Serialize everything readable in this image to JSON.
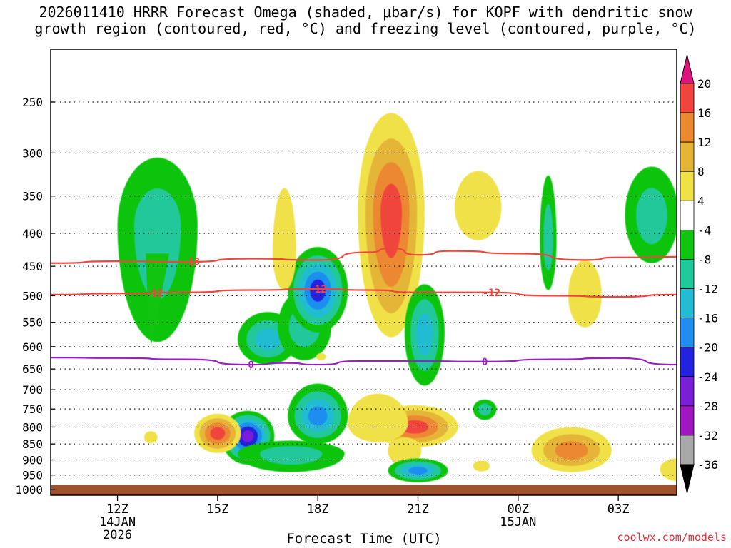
{
  "title": {
    "line1": "2026011410 HRRR Forecast Omega (shaded, μbar/s) for KOPF with dendritic snow",
    "line2": "growth region (contoured, red, °C) and freezing level (contoured, purple, °C)"
  },
  "credit": "coolwx.com/models",
  "chart_data": {
    "type": "heatmap",
    "xlabel": "Forecast Time (UTC)",
    "x_range_hours": [
      10.0,
      28.75
    ],
    "x_ticks": [
      {
        "hour": 12,
        "label": "12Z",
        "sub1": "14JAN",
        "sub2": "2026"
      },
      {
        "hour": 15,
        "label": "15Z",
        "sub1": "",
        "sub2": ""
      },
      {
        "hour": 18,
        "label": "18Z",
        "sub1": "",
        "sub2": ""
      },
      {
        "hour": 21,
        "label": "21Z",
        "sub1": "",
        "sub2": ""
      },
      {
        "hour": 24,
        "label": "00Z",
        "sub1": "15JAN",
        "sub2": ""
      },
      {
        "hour": 27,
        "label": "03Z",
        "sub1": "",
        "sub2": ""
      }
    ],
    "y_axis": "pressure (mb)",
    "y_ticks": [
      "250",
      "300",
      "350",
      "400",
      "450",
      "500",
      "550",
      "600",
      "650",
      "700",
      "750",
      "800",
      "850",
      "900",
      "950",
      "1000"
    ],
    "colorbar": {
      "labels": [
        "20",
        "16",
        "12",
        "8",
        "4",
        "-4",
        "-8",
        "-12",
        "-16",
        "-20",
        "-24",
        "-28",
        "-32",
        "-36"
      ],
      "top_color": "#e0137f",
      "bottom_color": "#000000",
      "bands": [
        {
          "min": 16,
          "max": 20,
          "color": "#f0443c"
        },
        {
          "min": 12,
          "max": 16,
          "color": "#ec8830"
        },
        {
          "min": 8,
          "max": 12,
          "color": "#e5b537"
        },
        {
          "min": 4,
          "max": 8,
          "color": "#efe146"
        },
        {
          "min": -4,
          "max": 4,
          "color": "#ffffff"
        },
        {
          "min": -8,
          "max": -4,
          "color": "#10c410"
        },
        {
          "min": -12,
          "max": -8,
          "color": "#20c89a"
        },
        {
          "min": -16,
          "max": -12,
          "color": "#23bcd2"
        },
        {
          "min": -20,
          "max": -16,
          "color": "#1f8ef0"
        },
        {
          "min": -24,
          "max": -20,
          "color": "#2222e0"
        },
        {
          "min": -28,
          "max": -24,
          "color": "#7a1fd8"
        },
        {
          "min": -32,
          "max": -28,
          "color": "#a016c0"
        },
        {
          "min": -36,
          "max": -32,
          "color": "#a8a8a8"
        }
      ]
    },
    "series": [
      {
        "name": "-18 °C isotherm",
        "label": "-18",
        "color": "#f0443c",
        "points": [
          [
            10,
            445
          ],
          [
            12,
            442
          ],
          [
            14,
            443
          ],
          [
            16,
            438
          ],
          [
            18,
            440
          ],
          [
            19.5,
            428
          ],
          [
            20.2,
            422
          ],
          [
            21,
            432
          ],
          [
            22,
            426
          ],
          [
            24,
            430
          ],
          [
            26,
            440
          ],
          [
            27,
            436
          ],
          [
            28.75,
            435
          ]
        ]
      },
      {
        "name": "-12 °C isotherm",
        "label": "-12",
        "color": "#f0443c",
        "points": [
          [
            10,
            498
          ],
          [
            12,
            496
          ],
          [
            14,
            494
          ],
          [
            16,
            490
          ],
          [
            18,
            488
          ],
          [
            19.5,
            490
          ],
          [
            21,
            494
          ],
          [
            23,
            494
          ],
          [
            25,
            500
          ],
          [
            27,
            502
          ],
          [
            28.75,
            498
          ]
        ]
      },
      {
        "name": "0 °C freezing level",
        "label": "0",
        "color": "#9a1dc8",
        "points": [
          [
            10,
            624
          ],
          [
            12,
            625
          ],
          [
            14,
            628
          ],
          [
            16,
            640
          ],
          [
            17,
            636
          ],
          [
            18,
            640
          ],
          [
            19.2,
            632
          ],
          [
            21,
            632
          ],
          [
            23,
            633
          ],
          [
            25,
            628
          ],
          [
            26.9,
            625
          ],
          [
            28.75,
            640
          ]
        ]
      }
    ],
    "omega_features": [
      {
        "hour": 13.2,
        "mb": 400,
        "peak": -8
      },
      {
        "hour": 16.5,
        "mb": 580,
        "peak": -12
      },
      {
        "hour": 18.0,
        "mb": 495,
        "peak": -20
      },
      {
        "hour": 16.0,
        "mb": 830,
        "peak": -24
      },
      {
        "hour": 18.0,
        "mb": 770,
        "peak": -16
      },
      {
        "hour": 20.2,
        "mb": 380,
        "peak": 16
      },
      {
        "hour": 21.0,
        "mb": 810,
        "peak": 16
      },
      {
        "hour": 15.0,
        "mb": 820,
        "peak": 16
      },
      {
        "hour": 21.0,
        "mb": 940,
        "peak": -16
      },
      {
        "hour": 21.0,
        "mb": 570,
        "peak": -12
      },
      {
        "hour": 25.5,
        "mb": 880,
        "peak": 12
      },
      {
        "hour": 28.0,
        "mb": 370,
        "peak": -8
      },
      {
        "hour": 22.8,
        "mb": 355,
        "peak": 8
      }
    ]
  }
}
